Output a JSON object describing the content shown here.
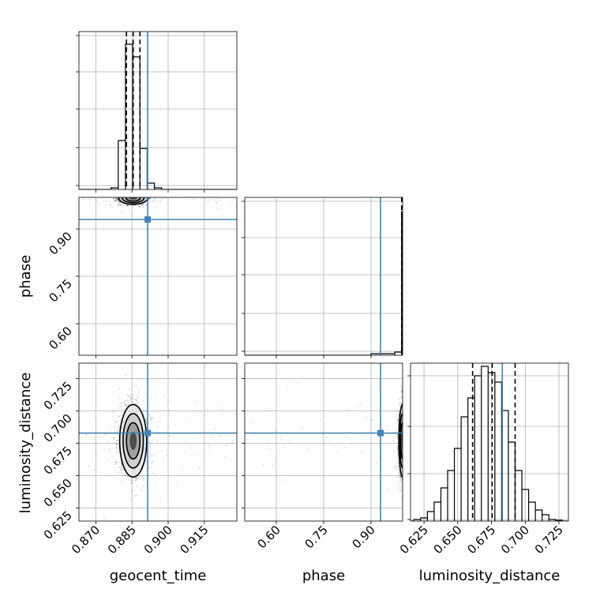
{
  "chart_data": {
    "type": "corner",
    "parameters": [
      "geocent_time",
      "phase",
      "luminosity_distance"
    ],
    "truths": {
      "geocent_time": 0.8915,
      "phase": 0.93,
      "luminosity_distance": 0.683
    },
    "truth_color": "#4682b4",
    "grid": true,
    "panels": {
      "hist_geocent_time": {
        "xlim": [
          0.863,
          0.9285
        ],
        "ylim": [
          0,
          1.0
        ],
        "quantiles": [
          0.8827,
          0.8855,
          0.8883
        ],
        "bins": [
          {
            "x0": 0.8763,
            "x1": 0.8793,
            "h": 0.01
          },
          {
            "x0": 0.8793,
            "x1": 0.8823,
            "h": 0.31
          },
          {
            "x0": 0.8823,
            "x1": 0.8853,
            "h": 0.92
          },
          {
            "x0": 0.8853,
            "x1": 0.8883,
            "h": 0.84
          },
          {
            "x0": 0.8883,
            "x1": 0.8913,
            "h": 0.26
          },
          {
            "x0": 0.8913,
            "x1": 0.8943,
            "h": 0.04
          },
          {
            "x0": 0.8943,
            "x1": 0.8973,
            "h": 0.01
          }
        ]
      },
      "hist_phase": {
        "xlim": [
          0.5,
          1.0
        ],
        "ylim": [
          0,
          1.0
        ],
        "quantiles": [
          0.997
        ],
        "bins": [
          {
            "x0": 0.9,
            "x1": 0.975,
            "h": 0.01
          },
          {
            "x0": 0.975,
            "x1": 0.997,
            "h": 0.02
          },
          {
            "x0": 0.997,
            "x1": 1.0,
            "h": 0.91
          }
        ]
      },
      "hist_luminosity_distance": {
        "xlim": [
          0.615,
          0.732
        ],
        "ylim": [
          0,
          1.0
        ],
        "quantiles": [
          0.661,
          0.6755,
          0.6925
        ],
        "bins": [
          {
            "x0": 0.6175,
            "x1": 0.6225,
            "h": 0.01
          },
          {
            "x0": 0.6225,
            "x1": 0.6275,
            "h": 0.02
          },
          {
            "x0": 0.6275,
            "x1": 0.6325,
            "h": 0.06
          },
          {
            "x0": 0.6325,
            "x1": 0.6375,
            "h": 0.12
          },
          {
            "x0": 0.6375,
            "x1": 0.6425,
            "h": 0.21
          },
          {
            "x0": 0.6425,
            "x1": 0.6475,
            "h": 0.32
          },
          {
            "x0": 0.6475,
            "x1": 0.6525,
            "h": 0.46
          },
          {
            "x0": 0.6525,
            "x1": 0.6575,
            "h": 0.66
          },
          {
            "x0": 0.6575,
            "x1": 0.6625,
            "h": 0.78
          },
          {
            "x0": 0.6625,
            "x1": 0.6675,
            "h": 0.92
          },
          {
            "x0": 0.6675,
            "x1": 0.6725,
            "h": 0.98
          },
          {
            "x0": 0.6725,
            "x1": 0.6775,
            "h": 0.94
          },
          {
            "x0": 0.6775,
            "x1": 0.6825,
            "h": 0.88
          },
          {
            "x0": 0.6825,
            "x1": 0.6875,
            "h": 0.7
          },
          {
            "x0": 0.6875,
            "x1": 0.6925,
            "h": 0.5
          },
          {
            "x0": 0.6925,
            "x1": 0.6975,
            "h": 0.32
          },
          {
            "x0": 0.6975,
            "x1": 0.7025,
            "h": 0.2
          },
          {
            "x0": 0.7025,
            "x1": 0.7075,
            "h": 0.12
          },
          {
            "x0": 0.7075,
            "x1": 0.7125,
            "h": 0.07
          },
          {
            "x0": 0.7125,
            "x1": 0.7175,
            "h": 0.04
          },
          {
            "x0": 0.7175,
            "x1": 0.7225,
            "h": 0.01
          },
          {
            "x0": 0.7225,
            "x1": 0.7275,
            "h": 0.005
          }
        ]
      },
      "scatter_phase_vs_geocent_time": {
        "x": "geocent_time",
        "y": "phase",
        "xlim": [
          0.863,
          0.9285
        ],
        "ylim": [
          0.5,
          1.0
        ],
        "yticks": [
          "0.60",
          "0.75",
          "0.90"
        ],
        "density_center": [
          0.8855,
          0.998
        ],
        "density_sigma": [
          0.003,
          0.01
        ]
      },
      "scatter_ld_vs_geocent_time": {
        "x": "geocent_time",
        "y": "luminosity_distance",
        "xlim": [
          0.863,
          0.9285
        ],
        "ylim": [
          0.615,
          0.737
        ],
        "xticks": [
          "0.870",
          "0.885",
          "0.900",
          "0.915"
        ],
        "yticks": [
          "0.625",
          "0.650",
          "0.675",
          "0.700",
          "0.725"
        ],
        "density_center": [
          0.8855,
          0.677
        ],
        "density_sigma": [
          0.0028,
          0.014
        ]
      },
      "scatter_ld_vs_phase": {
        "x": "phase",
        "y": "luminosity_distance",
        "xlim": [
          0.5,
          1.0
        ],
        "ylim": [
          0.615,
          0.737
        ],
        "xticks": [
          "0.60",
          "0.75",
          "0.90"
        ],
        "density_center": [
          1.0,
          0.677
        ],
        "density_sigma": [
          0.006,
          0.014
        ]
      },
      "hist_luminosity_distance_ticks": [
        "0.625",
        "0.650",
        "0.675",
        "0.700",
        "0.725"
      ]
    },
    "xlabels": {
      "col0": "geocent_time",
      "col1": "phase",
      "col2": "luminosity_distance"
    },
    "ylabels": {
      "row1": "phase",
      "row2": "luminosity_distance"
    }
  }
}
